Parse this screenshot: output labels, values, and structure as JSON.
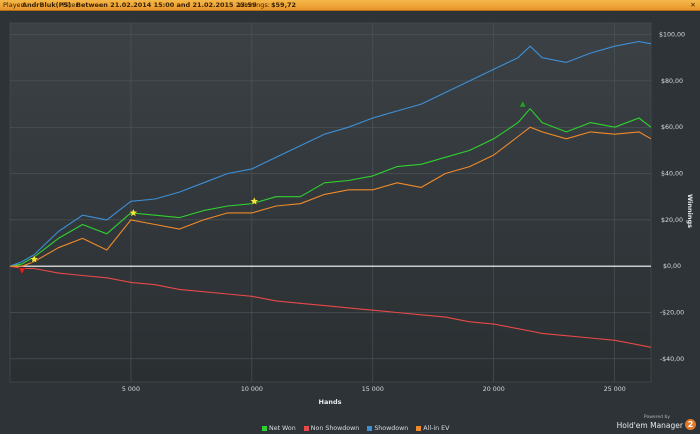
{
  "header": {
    "player_label": "Player:",
    "player_value": "AndrBluk(PS)",
    "filter_label": "Filter:",
    "filter_value": "Between 21.02.2014 15:00 and 21.02.2015 23:59",
    "winnings_label": "Winnings:",
    "winnings_value": "$59,72",
    "close_icon": "close-icon"
  },
  "branding": {
    "powered_by": "Powered by",
    "name": "Hold'em Manager",
    "logo": "2"
  },
  "colors": {
    "net_won": "#2fd12f",
    "non_showdown": "#e84848",
    "showdown": "#3d8fd6",
    "all_in_ev": "#f08a2a",
    "zero_line": "#ffffff",
    "star": "#f5e63a"
  },
  "chart_data": {
    "type": "line",
    "xlabel": "Hands",
    "ylabel": "Winnings",
    "xlim": [
      0,
      26500
    ],
    "ylim": [
      -50,
      105
    ],
    "x_ticks": [
      5000,
      10000,
      15000,
      20000,
      25000
    ],
    "x_tick_labels": [
      "5 000",
      "10 000",
      "15 000",
      "20 000",
      "25 000"
    ],
    "y_ticks": [
      -40,
      -20,
      0,
      20,
      40,
      60,
      80,
      100
    ],
    "y_tick_labels": [
      "-$40,00",
      "-$20,00",
      "$0,00",
      "$20,00",
      "$40,00",
      "$60,00",
      "$80,00",
      "$100,00"
    ],
    "grid": true,
    "legend_position": "bottom",
    "x": [
      0,
      500,
      1000,
      2000,
      3000,
      4000,
      5000,
      6000,
      7000,
      8000,
      9000,
      10000,
      11000,
      12000,
      13000,
      14000,
      15000,
      16000,
      17000,
      18000,
      19000,
      20000,
      21000,
      21500,
      22000,
      23000,
      24000,
      25000,
      26000,
      26500
    ],
    "series": [
      {
        "name": "Net Won",
        "color": "#2fd12f",
        "values": [
          0,
          1,
          4,
          12,
          18,
          14,
          23,
          22,
          21,
          24,
          26,
          27,
          30,
          30,
          36,
          37,
          39,
          43,
          44,
          47,
          50,
          55,
          62,
          68,
          62,
          58,
          62,
          60,
          64,
          60
        ]
      },
      {
        "name": "Non Showdown",
        "color": "#e84848",
        "values": [
          0,
          -1,
          -1,
          -3,
          -4,
          -5,
          -7,
          -8,
          -10,
          -11,
          -12,
          -13,
          -15,
          -16,
          -17,
          -18,
          -19,
          -20,
          -21,
          -22,
          -24,
          -25,
          -27,
          -28,
          -29,
          -30,
          -31,
          -32,
          -34,
          -35
        ]
      },
      {
        "name": "Showdown",
        "color": "#3d8fd6",
        "values": [
          0,
          2,
          5,
          15,
          22,
          20,
          28,
          29,
          32,
          36,
          40,
          42,
          47,
          52,
          57,
          60,
          64,
          67,
          70,
          75,
          80,
          85,
          90,
          95,
          90,
          88,
          92,
          95,
          97,
          96
        ]
      },
      {
        "name": "All-in EV",
        "color": "#f08a2a",
        "values": [
          0,
          0,
          2,
          8,
          12,
          7,
          20,
          18,
          16,
          20,
          23,
          23,
          26,
          27,
          31,
          33,
          33,
          36,
          34,
          40,
          43,
          48,
          56,
          60,
          58,
          55,
          58,
          57,
          58,
          55
        ]
      }
    ],
    "markers": [
      {
        "x": 500,
        "y": -2,
        "kind": "down-triangle",
        "color": "#e02020"
      },
      {
        "x": 1000,
        "y": 3,
        "kind": "star",
        "color": "#f5e63a"
      },
      {
        "x": 5100,
        "y": 23,
        "kind": "star",
        "color": "#f5e63a"
      },
      {
        "x": 10100,
        "y": 28,
        "kind": "star",
        "color": "#f5e63a"
      },
      {
        "x": 21200,
        "y": 70,
        "kind": "up-triangle",
        "color": "#2a9a2a"
      }
    ]
  }
}
